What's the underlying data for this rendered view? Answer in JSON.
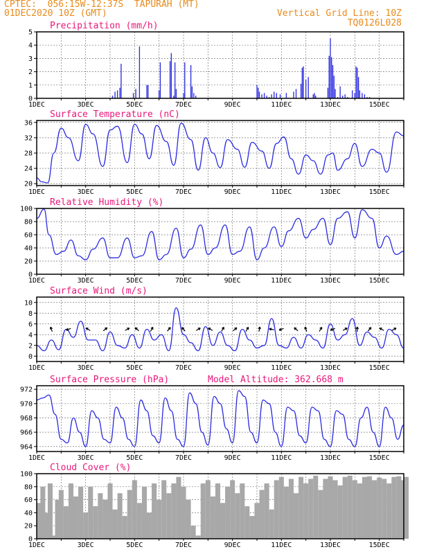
{
  "header": {
    "line1": "CPTEC:  056:15W-12:37S  TAPURAH (MT)",
    "line2": "01DEC2020 10Z (GMT)",
    "grid_note": "Vertical Grid Line: 10Z",
    "code": "TQ0126L028"
  },
  "colors": {
    "header": "#e88a1a",
    "title": "#e8177a",
    "series": "#2a2ae0",
    "cloud": "#a8a8a8"
  },
  "chart_data": [
    {
      "type": "bar",
      "title": "Precipitation (mm/h)",
      "ylim": [
        0,
        5
      ],
      "yticks": [
        0,
        1,
        2,
        3,
        4,
        5
      ],
      "xlim": [
        0,
        15
      ],
      "xtick_labels": [
        "1DEC",
        "3DEC",
        "5DEC",
        "7DEC",
        "9DEC",
        "11DEC",
        "13DEC",
        "15DEC"
      ],
      "xtick_days": [
        0,
        2,
        4,
        6,
        8,
        10,
        12,
        14
      ],
      "x_days": [
        3.1,
        3.2,
        3.3,
        3.4,
        3.45,
        3.95,
        4.05,
        4.2,
        4.5,
        4.55,
        5.0,
        5.05,
        5.45,
        5.5,
        5.6,
        5.65,
        5.7,
        6.0,
        6.05,
        6.3,
        6.35,
        6.42,
        6.5,
        9.0,
        9.05,
        9.1,
        9.2,
        9.3,
        9.4,
        9.5,
        9.6,
        9.7,
        9.8,
        9.95,
        10.2,
        10.5,
        10.6,
        10.8,
        10.85,
        10.9,
        11.0,
        11.1,
        11.3,
        11.35,
        11.4,
        11.9,
        11.95,
        12.0,
        12.05,
        12.1,
        12.15,
        12.2,
        12.3,
        12.4,
        12.5,
        12.6,
        12.7,
        12.9,
        13.0,
        13.05,
        13.1,
        13.15,
        13.2,
        13.3,
        13.4,
        13.5,
        13.6
      ],
      "values": [
        0.2,
        0.5,
        0.6,
        0.8,
        2.6,
        0.4,
        0.7,
        3.9,
        1.0,
        1.0,
        0.6,
        2.7,
        2.8,
        3.4,
        0.2,
        2.7,
        0.7,
        0.4,
        2.7,
        2.5,
        0.9,
        0.4,
        0.2,
        1.0,
        0.8,
        0.5,
        0.3,
        0.4,
        0.2,
        0.1,
        0.3,
        0.5,
        0.4,
        0.3,
        0.4,
        0.5,
        0.7,
        1.1,
        2.3,
        2.4,
        1.4,
        1.6,
        0.3,
        0.4,
        0.2,
        0.8,
        3.2,
        4.5,
        3.1,
        2.5,
        1.7,
        0.7,
        0.1,
        0.9,
        0.2,
        0.3,
        0.1,
        0.6,
        0.4,
        2.4,
        2.3,
        1.6,
        0.6,
        0.4,
        0.3,
        0.1,
        0.1
      ]
    },
    {
      "type": "line",
      "title": "Surface Temperature (nC)",
      "ylim": [
        19.5,
        36.5
      ],
      "yticks": [
        20,
        24,
        28,
        32,
        36
      ],
      "xlim": [
        0,
        15
      ],
      "xtick_labels": [
        "1DEC",
        "3DEC",
        "5DEC",
        "7DEC",
        "9DEC",
        "11DEC",
        "13DEC",
        "15DEC"
      ],
      "xtick_days": [
        0,
        2,
        4,
        6,
        8,
        10,
        12,
        14
      ],
      "x_days": [
        0,
        0.2,
        0.45,
        0.7,
        1.0,
        1.3,
        1.7,
        2.0,
        2.3,
        2.7,
        3.0,
        3.3,
        3.7,
        4.0,
        4.3,
        4.6,
        4.9,
        5.3,
        5.6,
        5.9,
        6.3,
        6.6,
        6.9,
        7.2,
        7.5,
        7.8,
        8.2,
        8.5,
        8.8,
        9.2,
        9.5,
        9.8,
        10.1,
        10.4,
        10.7,
        11.0,
        11.3,
        11.6,
        11.9,
        12.1,
        12.3,
        12.7,
        13.0,
        13.3,
        13.7,
        14.0,
        14.3,
        14.7,
        15.0
      ],
      "values": [
        21.5,
        20.5,
        20.2,
        28.0,
        34.5,
        32.0,
        26.0,
        35.5,
        33.0,
        24.5,
        34.0,
        35.0,
        25.5,
        35.5,
        33.0,
        26.5,
        35.2,
        31.0,
        24.8,
        35.8,
        31.5,
        23.5,
        32.0,
        28.0,
        24.2,
        31.5,
        29.0,
        24.3,
        30.8,
        28.5,
        24.0,
        30.5,
        32.2,
        26.5,
        22.5,
        27.5,
        26.0,
        22.5,
        27.5,
        28.0,
        23.5,
        26.5,
        30.5,
        24.5,
        29.0,
        28.0,
        23.0,
        33.5,
        32.5
      ]
    },
    {
      "type": "line",
      "title": "Relative Humidity (%)",
      "ylim": [
        0,
        100
      ],
      "yticks": [
        0,
        20,
        40,
        60,
        80,
        100
      ],
      "xlim": [
        0,
        15
      ],
      "xtick_labels": [
        "1DEC",
        "3DEC",
        "5DEC",
        "7DEC",
        "9DEC",
        "11DEC",
        "13DEC",
        "15DEC"
      ],
      "xtick_days": [
        0,
        2,
        4,
        6,
        8,
        10,
        12,
        14
      ],
      "x_days": [
        0,
        0.3,
        0.5,
        0.8,
        1.1,
        1.4,
        1.7,
        2.0,
        2.3,
        2.7,
        3.0,
        3.3,
        3.7,
        4.0,
        4.3,
        4.7,
        5.0,
        5.3,
        5.7,
        6.0,
        6.3,
        6.7,
        7.0,
        7.3,
        7.7,
        8.0,
        8.3,
        8.7,
        9.0,
        9.3,
        9.7,
        10.0,
        10.3,
        10.7,
        11.0,
        11.3,
        11.7,
        12.0,
        12.3,
        12.7,
        13.0,
        13.3,
        13.7,
        14.0,
        14.3,
        14.7,
        15.0
      ],
      "values": [
        85,
        99,
        60,
        30,
        35,
        52,
        28,
        22,
        38,
        55,
        25,
        25,
        55,
        25,
        28,
        65,
        22,
        30,
        70,
        25,
        38,
        75,
        30,
        40,
        75,
        30,
        35,
        72,
        22,
        40,
        72,
        42,
        66,
        85,
        55,
        68,
        85,
        45,
        85,
        95,
        55,
        98,
        85,
        40,
        58,
        30,
        35
      ]
    },
    {
      "type": "line",
      "title": "Surface Wind (m/s)",
      "ylim": [
        -1,
        11
      ],
      "yticks": [
        0,
        2,
        4,
        6,
        8,
        10
      ],
      "xlim": [
        0,
        15
      ],
      "xtick_labels": [
        "1DEC",
        "3DEC",
        "5DEC",
        "7DEC",
        "9DEC",
        "11DEC",
        "13DEC",
        "15DEC"
      ],
      "xtick_days": [
        0,
        2,
        4,
        6,
        8,
        10,
        12,
        14
      ],
      "x_days": [
        0,
        0.3,
        0.6,
        0.9,
        1.2,
        1.5,
        1.8,
        2.1,
        2.4,
        2.7,
        3.0,
        3.3,
        3.6,
        3.9,
        4.2,
        4.5,
        4.8,
        5.1,
        5.4,
        5.7,
        6.0,
        6.3,
        6.6,
        6.9,
        7.2,
        7.5,
        7.8,
        8.1,
        8.4,
        8.7,
        9.0,
        9.3,
        9.6,
        9.9,
        10.2,
        10.5,
        10.8,
        11.1,
        11.4,
        11.7,
        12.0,
        12.3,
        12.6,
        12.9,
        13.2,
        13.5,
        13.8,
        14.1,
        14.4,
        14.7,
        15.0
      ],
      "values": [
        2.0,
        1.0,
        3.0,
        1.2,
        5.0,
        3.5,
        6.5,
        3.0,
        3.0,
        1.0,
        4.5,
        2.0,
        1.5,
        4.0,
        1.5,
        5.0,
        3.0,
        4.0,
        1.0,
        9.0,
        4.0,
        2.5,
        1.0,
        5.5,
        2.0,
        4.5,
        2.0,
        1.0,
        5.0,
        3.0,
        1.5,
        2.0,
        7.0,
        2.0,
        1.5,
        3.5,
        1.5,
        4.0,
        3.0,
        1.5,
        6.0,
        3.0,
        4.0,
        7.0,
        2.0,
        4.5,
        3.5,
        1.5,
        5.0,
        4.0,
        1.5
      ],
      "arrows": {
        "y": 5,
        "x_days": [
          0.6,
          1.3,
          2.1,
          2.8,
          3.7,
          4.1,
          4.7,
          5.4,
          6.0,
          6.6,
          7.1,
          7.6,
          8.1,
          8.6,
          9.1,
          9.6,
          10.0,
          10.6,
          11.0,
          11.6,
          12.1,
          12.6,
          13.1,
          13.6,
          14.1,
          14.6
        ],
        "direction_deg": [
          110,
          200,
          150,
          40,
          30,
          140,
          60,
          50,
          130,
          30,
          150,
          60,
          40,
          60,
          80,
          170,
          200,
          140,
          110,
          60,
          200,
          30,
          90,
          50,
          150,
          30
        ]
      }
    },
    {
      "type": "line",
      "title": "Surface Pressure (hPa)",
      "subtitle": "Model Altitude: 362.668 m",
      "ylim": [
        963.3,
        972.5
      ],
      "yticks": [
        964,
        966,
        968,
        970,
        972
      ],
      "xlim": [
        0,
        15
      ],
      "xtick_labels": [
        "1DEC",
        "3DEC",
        "5DEC",
        "7DEC",
        "9DEC",
        "11DEC",
        "13DEC",
        "15DEC"
      ],
      "xtick_days": [
        0,
        2,
        4,
        6,
        8,
        10,
        12,
        14
      ],
      "x_days": [
        0,
        0.25,
        0.5,
        0.75,
        1.0,
        1.25,
        1.5,
        1.75,
        2.0,
        2.25,
        2.5,
        2.75,
        3.0,
        3.25,
        3.5,
        3.75,
        4.0,
        4.25,
        4.5,
        4.75,
        5.0,
        5.25,
        5.5,
        5.75,
        6.0,
        6.25,
        6.5,
        6.75,
        7.0,
        7.25,
        7.5,
        7.75,
        8.0,
        8.25,
        8.5,
        8.75,
        9.0,
        9.25,
        9.5,
        9.75,
        10.0,
        10.25,
        10.5,
        10.75,
        11.0,
        11.25,
        11.5,
        11.75,
        12.0,
        12.25,
        12.5,
        12.75,
        13.0,
        13.25,
        13.5,
        13.75,
        14.0,
        14.25,
        14.5,
        14.75,
        15.0
      ],
      "values": [
        970.5,
        970.8,
        971.2,
        968.5,
        965.0,
        964.5,
        968.0,
        966.0,
        964.0,
        969.0,
        968.0,
        965.0,
        964.5,
        969.5,
        968.0,
        965.0,
        964.0,
        970.5,
        969.0,
        965.5,
        964.5,
        970.8,
        969.0,
        965.0,
        964.0,
        971.5,
        970.0,
        966.0,
        964.2,
        971.0,
        970.0,
        966.5,
        964.5,
        971.8,
        971.0,
        966.0,
        964.5,
        970.5,
        970.0,
        966.0,
        964.0,
        969.5,
        969.0,
        965.5,
        964.5,
        969.5,
        969.0,
        965.0,
        964.0,
        969.0,
        968.5,
        965.0,
        964.0,
        968.0,
        969.5,
        966.0,
        964.0,
        969.5,
        968.0,
        965.0,
        967.0
      ]
    },
    {
      "type": "area",
      "title": "Cloud Cover (%)",
      "ylim": [
        0,
        100
      ],
      "yticks": [
        0,
        20,
        40,
        60,
        80,
        100
      ],
      "xlim": [
        0,
        15
      ],
      "xtick_labels": [
        "1DEC",
        "3DEC",
        "5DEC",
        "7DEC",
        "9DEC",
        "11DEC",
        "13DEC",
        "15DEC"
      ],
      "xtick_days": [
        0,
        2,
        4,
        6,
        8,
        10,
        12,
        14
      ],
      "x_days": [
        0,
        0.15,
        0.3,
        0.45,
        0.6,
        0.75,
        0.9,
        1.1,
        1.3,
        1.5,
        1.7,
        1.9,
        2.1,
        2.3,
        2.5,
        2.7,
        2.9,
        3.1,
        3.3,
        3.5,
        3.7,
        3.9,
        4.1,
        4.3,
        4.5,
        4.7,
        4.9,
        5.1,
        5.3,
        5.5,
        5.7,
        5.9,
        6.1,
        6.3,
        6.5,
        6.7,
        6.9,
        7.1,
        7.3,
        7.5,
        7.7,
        7.9,
        8.1,
        8.3,
        8.5,
        8.7,
        8.9,
        9.1,
        9.3,
        9.5,
        9.7,
        9.9,
        10.1,
        10.3,
        10.5,
        10.7,
        10.9,
        11.1,
        11.3,
        11.5,
        11.7,
        11.9,
        12.1,
        12.3,
        12.5,
        12.7,
        12.9,
        13.1,
        13.3,
        13.5,
        13.7,
        13.9,
        14.1,
        14.3,
        14.5,
        14.7,
        14.9,
        15.0
      ],
      "values": [
        55,
        80,
        40,
        85,
        5,
        60,
        75,
        50,
        85,
        65,
        80,
        40,
        80,
        50,
        70,
        60,
        85,
        45,
        70,
        35,
        75,
        90,
        55,
        80,
        40,
        85,
        60,
        90,
        70,
        85,
        95,
        80,
        60,
        20,
        5,
        85,
        90,
        65,
        85,
        55,
        80,
        90,
        70,
        85,
        50,
        35,
        55,
        75,
        85,
        45,
        90,
        95,
        80,
        92,
        70,
        95,
        85,
        92,
        97,
        75,
        92,
        96,
        90,
        82,
        95,
        97,
        90,
        85,
        95,
        96,
        90,
        94,
        92,
        85,
        95,
        96,
        90,
        95
      ]
    }
  ]
}
